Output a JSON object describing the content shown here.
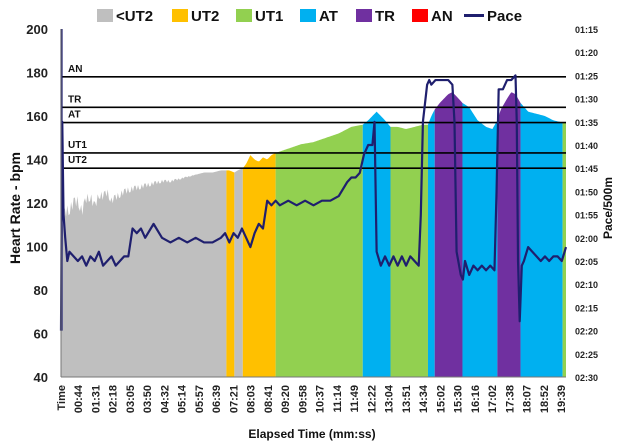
{
  "chart_data": {
    "type": "area",
    "xlabel": "Elapsed Time (mm:ss)",
    "ylabel": "Heart Rate - bpm",
    "y2label": "Pace/500m",
    "ylim": [
      40,
      200
    ],
    "yticks": [
      40,
      60,
      80,
      100,
      120,
      140,
      160,
      180,
      200
    ],
    "xlim": [
      0,
      1200
    ],
    "x_tick_labels": [
      "Time",
      "00:44",
      "01:31",
      "02:18",
      "03:05",
      "03:50",
      "04:32",
      "05:14",
      "05:57",
      "06:39",
      "07:21",
      "08:03",
      "08:41",
      "09:20",
      "09:58",
      "10:37",
      "11:14",
      "11:49",
      "12:22",
      "13:04",
      "13:51",
      "14:34",
      "15:02",
      "15:30",
      "16:16",
      "17:02",
      "17:38",
      "18:07",
      "18:52",
      "19:39"
    ],
    "y2_tick_labels": [
      "01:15",
      "01:20",
      "01:25",
      "01:30",
      "01:35",
      "01:40",
      "01:45",
      "01:50",
      "01:55",
      "02:00",
      "02:05",
      "02:10",
      "02:15",
      "02:20",
      "02:25",
      "02:30"
    ],
    "legend": [
      {
        "label": "<UT2",
        "color": "#bfbfbf",
        "kind": "box"
      },
      {
        "label": "UT2",
        "color": "#ffc000",
        "kind": "box"
      },
      {
        "label": "UT1",
        "color": "#92d050",
        "kind": "box"
      },
      {
        "label": "AT",
        "color": "#00b0f0",
        "kind": "box"
      },
      {
        "label": "TR",
        "color": "#7030a0",
        "kind": "box"
      },
      {
        "label": "AN",
        "color": "#ff0000",
        "kind": "box"
      },
      {
        "label": "Pace",
        "color": "#1f1f6e",
        "kind": "line"
      }
    ],
    "thresholds": [
      {
        "label": "AN",
        "value": 178
      },
      {
        "label": "TR",
        "value": 164
      },
      {
        "label": "AT",
        "value": 157
      },
      {
        "label": "UT1",
        "value": 143
      },
      {
        "label": "UT2",
        "value": 136
      }
    ],
    "zones": [
      {
        "zone": "<UT2",
        "start": 0,
        "end": 393
      },
      {
        "zone": "UT2",
        "start": 393,
        "end": 412
      },
      {
        "zone": "<UT2",
        "start": 412,
        "end": 432
      },
      {
        "zone": "UT2",
        "start": 432,
        "end": 510
      },
      {
        "zone": "UT1",
        "start": 510,
        "end": 717
      },
      {
        "zone": "AT",
        "start": 717,
        "end": 783
      },
      {
        "zone": "UT1",
        "start": 783,
        "end": 872
      },
      {
        "zone": "AT",
        "start": 872,
        "end": 888
      },
      {
        "zone": "TR",
        "start": 888,
        "end": 954
      },
      {
        "zone": "AT",
        "start": 954,
        "end": 1037
      },
      {
        "zone": "TR",
        "start": 1037,
        "end": 1092
      },
      {
        "zone": "AT",
        "start": 1092,
        "end": 1192
      },
      {
        "zone": "UT1",
        "start": 1192,
        "end": 1200
      }
    ],
    "heart_rate": {
      "x": [
        0,
        5,
        10,
        20,
        30,
        40,
        50,
        60,
        70,
        80,
        90,
        100,
        110,
        120,
        140,
        160,
        180,
        200,
        220,
        240,
        260,
        280,
        300,
        320,
        340,
        360,
        380,
        393,
        400,
        412,
        420,
        432,
        440,
        450,
        460,
        470,
        480,
        490,
        500,
        510,
        540,
        570,
        600,
        630,
        660,
        690,
        717,
        730,
        740,
        750,
        760,
        770,
        783,
        800,
        820,
        840,
        860,
        872,
        880,
        888,
        900,
        910,
        920,
        930,
        940,
        954,
        970,
        990,
        1010,
        1025,
        1037,
        1045,
        1060,
        1070,
        1080,
        1092,
        1110,
        1130,
        1150,
        1170,
        1192,
        1200
      ],
      "y": [
        100,
        112,
        116,
        117,
        120,
        121,
        116,
        122,
        123,
        118,
        124,
        123,
        125,
        121,
        124,
        126,
        127,
        128,
        129,
        130,
        130,
        131,
        132,
        133,
        134,
        134,
        135,
        135,
        135,
        134,
        135,
        136,
        138,
        142,
        140,
        139,
        141,
        140,
        142,
        143,
        145,
        147,
        148,
        150,
        152,
        155,
        156,
        158,
        160,
        162,
        160,
        158,
        155,
        155,
        154,
        155,
        156,
        156,
        160,
        163,
        166,
        168,
        170,
        171,
        169,
        166,
        164,
        158,
        155,
        154,
        158,
        163,
        168,
        171,
        170,
        166,
        162,
        161,
        160,
        158,
        157,
        157
      ]
    },
    "pace_seconds": {
      "x": [
        0,
        3,
        6,
        10,
        15,
        20,
        30,
        40,
        50,
        60,
        70,
        80,
        90,
        100,
        110,
        120,
        130,
        140,
        150,
        160,
        170,
        180,
        190,
        200,
        220,
        240,
        260,
        280,
        300,
        320,
        340,
        360,
        380,
        390,
        400,
        410,
        420,
        430,
        440,
        450,
        460,
        470,
        480,
        490,
        500,
        510,
        520,
        540,
        560,
        580,
        600,
        620,
        640,
        660,
        680,
        690,
        700,
        710,
        720,
        730,
        740,
        745,
        750,
        760,
        770,
        780,
        790,
        800,
        810,
        820,
        830,
        840,
        850,
        855,
        860,
        870,
        875,
        880,
        890,
        900,
        910,
        920,
        930,
        935,
        940,
        950,
        955,
        960,
        970,
        980,
        990,
        1000,
        1010,
        1020,
        1030,
        1035,
        1040,
        1050,
        1060,
        1070,
        1080,
        1083,
        1086,
        1090,
        1095,
        1100,
        1110,
        1120,
        1130,
        1140,
        1150,
        1160,
        1170,
        1180,
        1190,
        1200
      ],
      "y": [
        140,
        95,
        115,
        120,
        125,
        123,
        124,
        125,
        124,
        126,
        124,
        125,
        123,
        126,
        125,
        124,
        126,
        125,
        124,
        124,
        118,
        119,
        118,
        120,
        117,
        120,
        121,
        120,
        121,
        120,
        121,
        121,
        120,
        119,
        121,
        119,
        120,
        118,
        120,
        122,
        119,
        117,
        118,
        112,
        113,
        112,
        113,
        112,
        113,
        112,
        113,
        112,
        112,
        111,
        108,
        107,
        107,
        106,
        102,
        100,
        100,
        95,
        123,
        126,
        124,
        126,
        124,
        126,
        124,
        126,
        124,
        125,
        126,
        115,
        95,
        87,
        86,
        87,
        86,
        86,
        86,
        86,
        87,
        95,
        123,
        128,
        129,
        125,
        128,
        126,
        127,
        126,
        127,
        126,
        127,
        110,
        88,
        88,
        86,
        86,
        85,
        95,
        125,
        138,
        126,
        125,
        122,
        123,
        124,
        125,
        124,
        125,
        124,
        124,
        125,
        122
      ]
    }
  }
}
